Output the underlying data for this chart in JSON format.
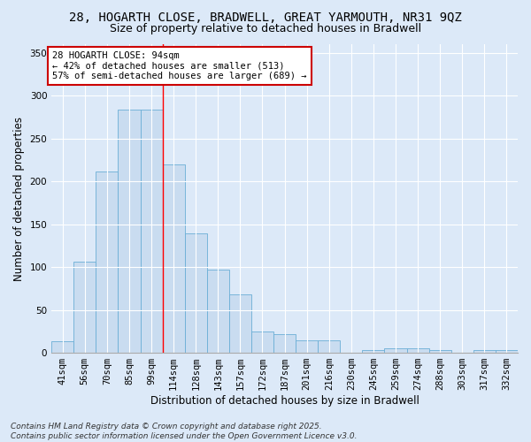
{
  "title_line1": "28, HOGARTH CLOSE, BRADWELL, GREAT YARMOUTH, NR31 9QZ",
  "title_line2": "Size of property relative to detached houses in Bradwell",
  "xlabel": "Distribution of detached houses by size in Bradwell",
  "ylabel": "Number of detached properties",
  "categories": [
    "41sqm",
    "56sqm",
    "70sqm",
    "85sqm",
    "99sqm",
    "114sqm",
    "128sqm",
    "143sqm",
    "157sqm",
    "172sqm",
    "187sqm",
    "201sqm",
    "216sqm",
    "230sqm",
    "245sqm",
    "259sqm",
    "274sqm",
    "288sqm",
    "303sqm",
    "317sqm",
    "332sqm"
  ],
  "values": [
    14,
    106,
    211,
    284,
    284,
    220,
    139,
    97,
    68,
    25,
    22,
    15,
    15,
    0,
    3,
    5,
    5,
    3,
    0,
    3,
    3
  ],
  "bar_color": "#c9dcf0",
  "bar_edge_color": "#6aaed6",
  "red_line_x": 4.5,
  "annotation_title": "28 HOGARTH CLOSE: 94sqm",
  "annotation_line1": "← 42% of detached houses are smaller (513)",
  "annotation_line2": "57% of semi-detached houses are larger (689) →",
  "annotation_box_color": "#ffffff",
  "annotation_box_edge": "#cc0000",
  "ylim": [
    0,
    360
  ],
  "yticks": [
    0,
    50,
    100,
    150,
    200,
    250,
    300,
    350
  ],
  "footnote": "Contains HM Land Registry data © Crown copyright and database right 2025.\nContains public sector information licensed under the Open Government Licence v3.0.",
  "bg_color": "#dce9f8",
  "plot_bg_color": "#dce9f8",
  "grid_color": "#ffffff",
  "title_fontsize": 10,
  "subtitle_fontsize": 9,
  "axis_label_fontsize": 8.5,
  "tick_fontsize": 7.5,
  "annotation_fontsize": 7.5,
  "footnote_fontsize": 6.5
}
